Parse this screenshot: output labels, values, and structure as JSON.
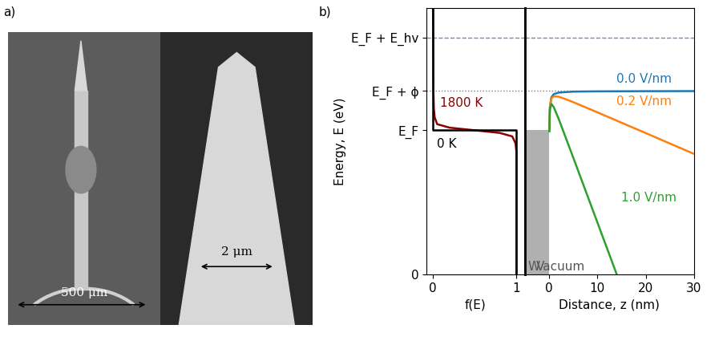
{
  "panel_a": {
    "label": "a)",
    "scale_bars": [
      "500 μm",
      "2 μm"
    ]
  },
  "panel_b_label": "b)",
  "chart_data": [
    {
      "type": "line",
      "xlabel": "f(E)",
      "ylabel": "Energy, E (eV)",
      "xlim": [
        -0.08,
        1.1
      ],
      "xticks": [
        0,
        1
      ],
      "ylim": [
        0,
        30.5
      ],
      "yticks": [
        0,
        {
          "value": 16.5,
          "label": "E_F"
        },
        {
          "value": 21,
          "label": "E_F + ϕ"
        },
        {
          "value": 27.1,
          "label": "E_F + E_hv"
        }
      ],
      "tick_labels": true,
      "hlines": [
        {
          "y": 27.1,
          "color": "#a070d0",
          "line_style": "dashed"
        },
        {
          "y": 21,
          "color": "#808080",
          "line_style": "dotted"
        }
      ],
      "series": [
        {
          "name": "1800 K",
          "color": "#8b0000",
          "line_style": "solid",
          "x": [
            1,
            1,
            0.99,
            0.95,
            0.8,
            0.5,
            0.2,
            0.05,
            0.02,
            0.01,
            0.005,
            0
          ],
          "y": [
            0,
            14,
            15,
            15.8,
            16.2,
            16.5,
            16.8,
            17.2,
            18,
            19,
            21,
            30.5
          ],
          "label_xy": [
            0.08,
            19.6
          ]
        },
        {
          "name": "0 K",
          "color": "#000000",
          "line_style": "solid",
          "x": [
            1,
            1,
            0,
            0
          ],
          "y": [
            0,
            16.5,
            16.5,
            30.5
          ],
          "label_xy": [
            0.05,
            14.9
          ]
        }
      ]
    },
    {
      "type": "line",
      "xlabel": "Distance, z (nm)",
      "xlim": [
        -5,
        30
      ],
      "xticks": [
        0,
        10,
        20,
        30
      ],
      "ylim": [
        0,
        30.5
      ],
      "yticks": [],
      "tick_labels": "x",
      "fill": {
        "x": [
          -5,
          0
        ],
        "y_top": 16.5,
        "color": "#b0b0b0"
      },
      "annotations": [
        {
          "text": "W",
          "x": -4.4,
          "y": 0.9
        },
        {
          "text": "Vacuum",
          "x": -2.6,
          "y": 0.9
        }
      ],
      "series": [
        {
          "name": "0.0 V/nm",
          "color": "#1f77b4",
          "x": [
            0.08,
            0.1,
            0.2,
            0.5,
            1,
            2,
            5,
            10,
            20,
            30
          ],
          "y": [
            16.5,
            17.4,
            19.2,
            20.28,
            20.64,
            20.82,
            20.93,
            20.96,
            20.98,
            20.99
          ],
          "label_xy": [
            14,
            22.4
          ]
        },
        {
          "name": "0.2 V/nm",
          "color": "#ff7f0e",
          "x": [
            0.08,
            0.2,
            0.5,
            1,
            2,
            3,
            5,
            10,
            20,
            30
          ],
          "y": [
            16.5,
            19.15,
            20.16,
            20.4,
            20.34,
            20.16,
            19.73,
            18.56,
            16.18,
            13.79
          ],
          "label_xy": [
            14,
            19.8
          ]
        },
        {
          "name": "1.0 V/nm",
          "color": "#2ca02c",
          "x": [
            0.08,
            0.2,
            0.5,
            1,
            2,
            5,
            10,
            14
          ],
          "y": [
            16.38,
            18.9,
            19.53,
            19.14,
            17.82,
            13.4,
            5.96,
            0
          ],
          "label_xy": [
            15,
            8.8
          ]
        }
      ]
    }
  ]
}
